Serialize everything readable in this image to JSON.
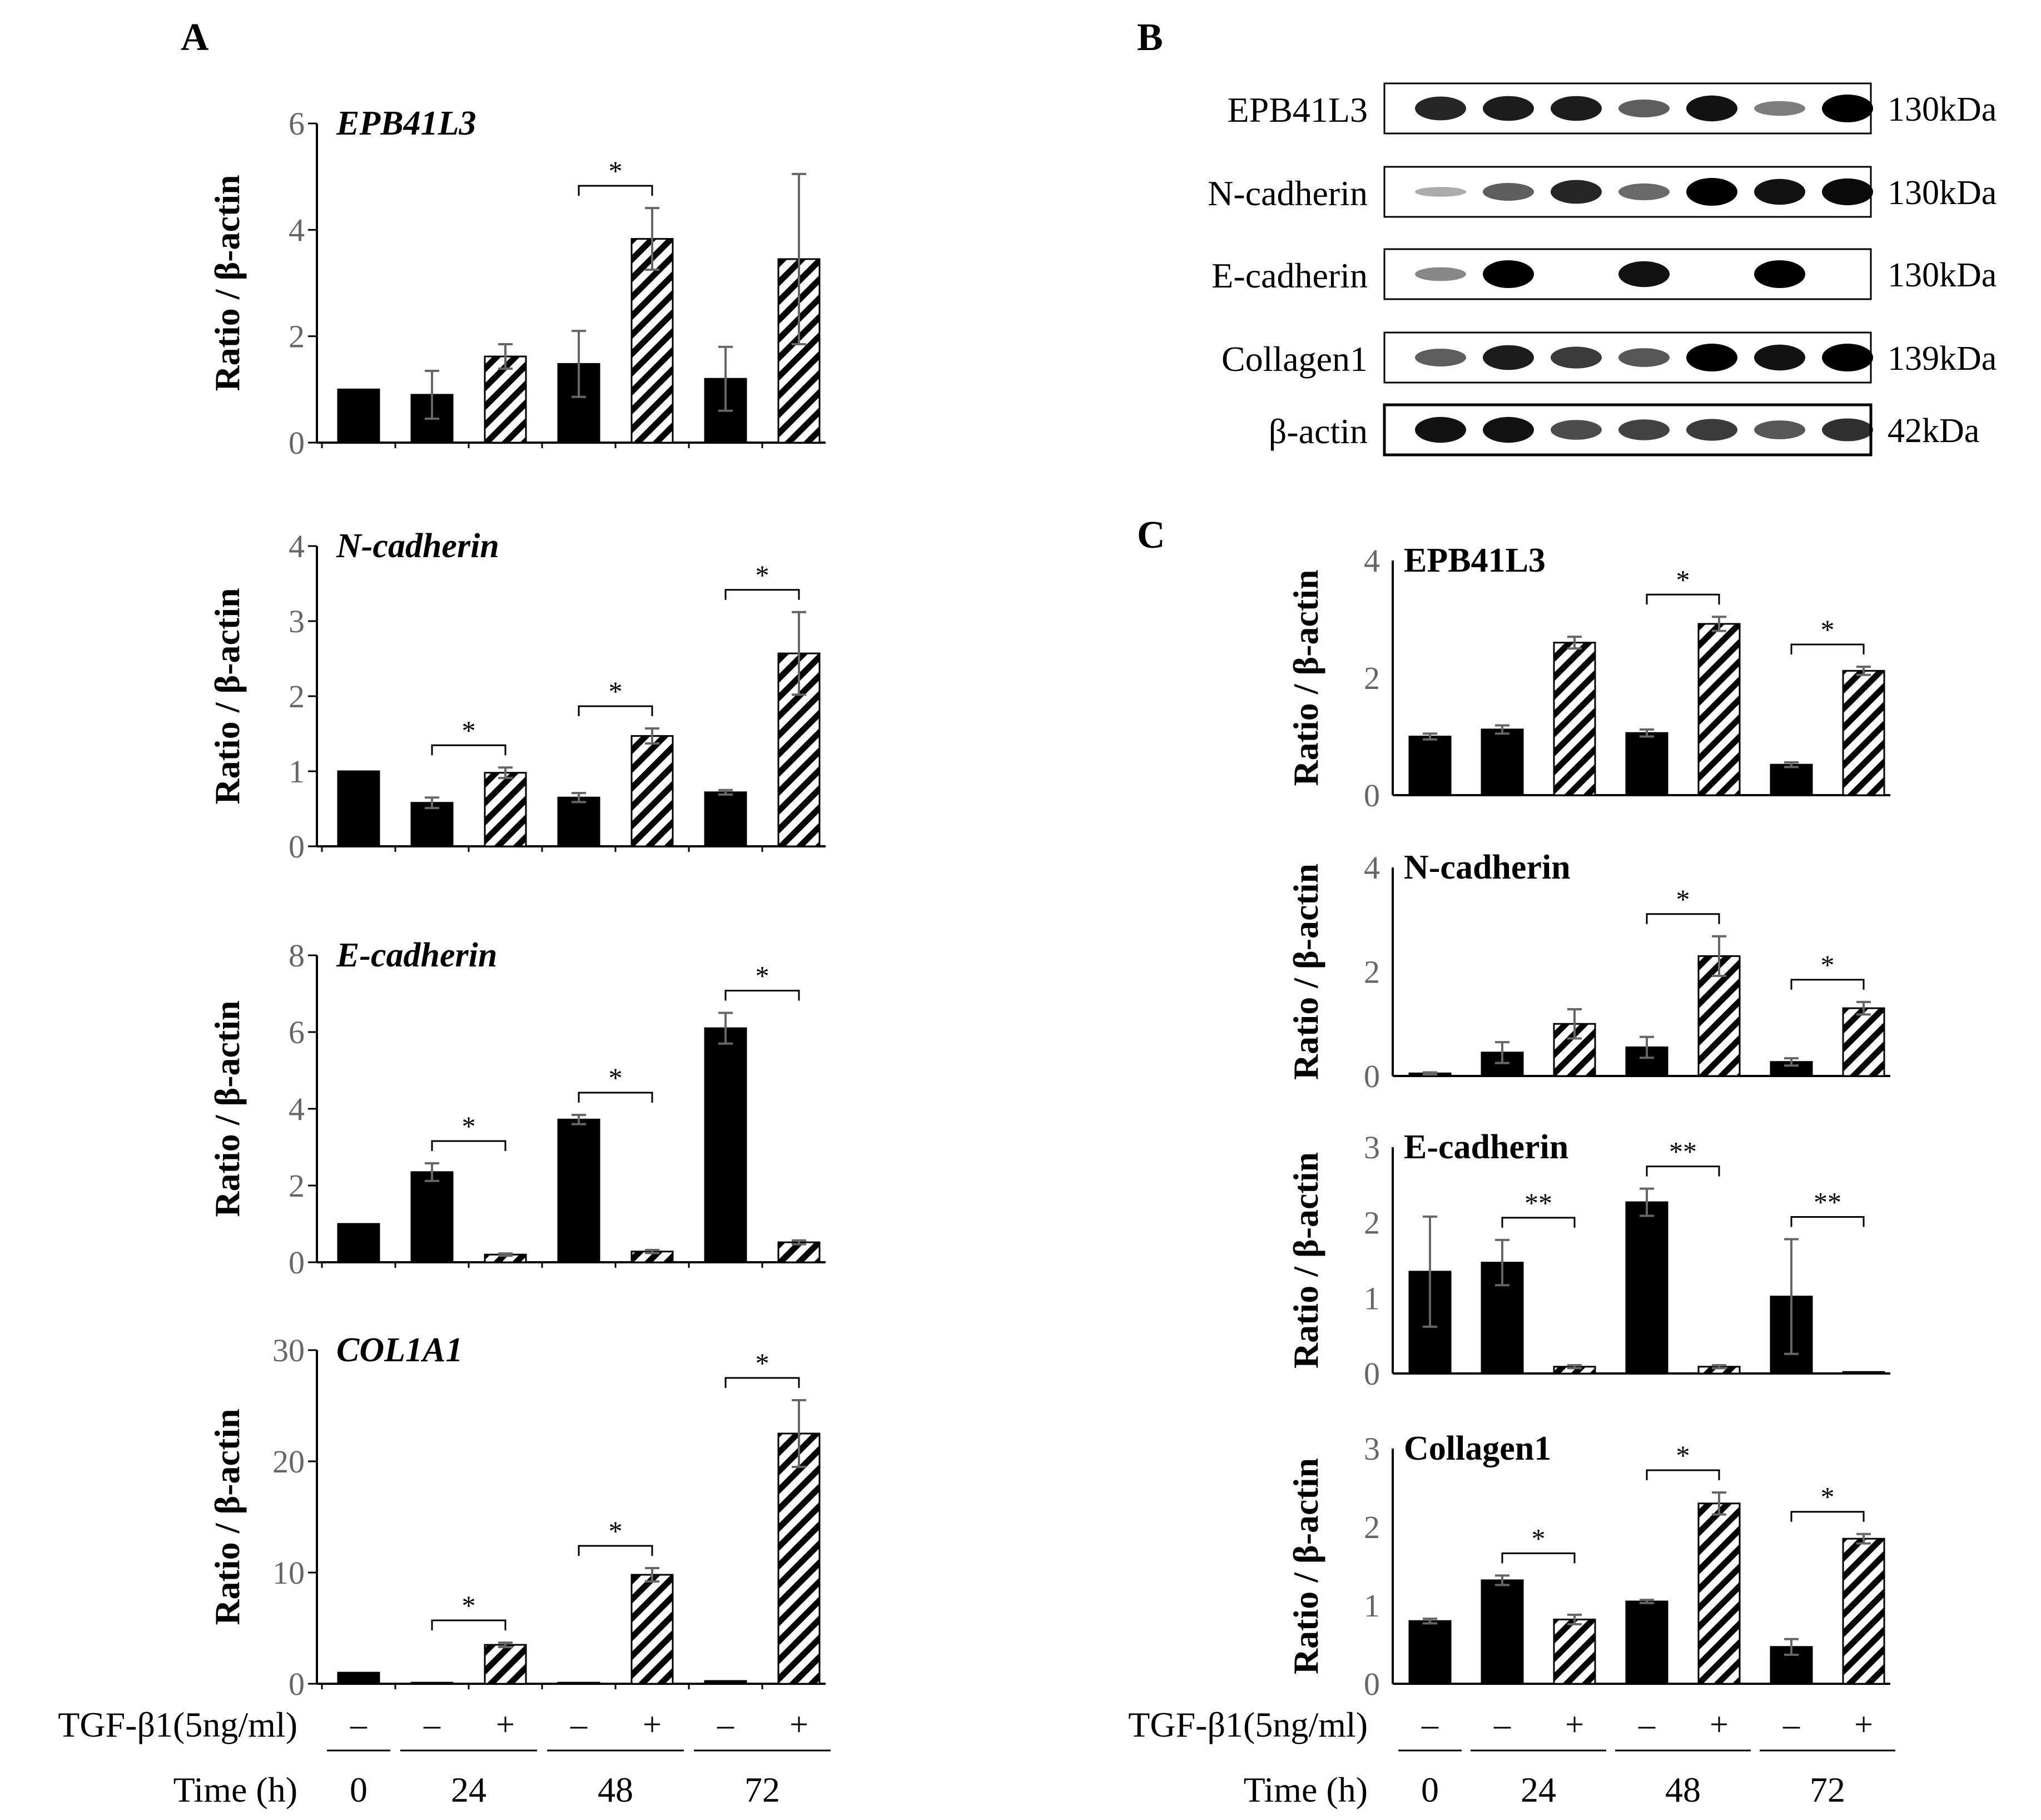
{
  "panel_labels": {
    "a": "A",
    "b": "B",
    "c": "C"
  },
  "axis_ylabel": "Ratio / β-actin",
  "treatment_label": "TGF-β1(5ng/ml)",
  "time_label": "Time (h)",
  "conditions": [
    "–",
    "–",
    "+",
    "–",
    "+",
    "–",
    "+"
  ],
  "time_points": [
    "0",
    "24",
    "48",
    "72"
  ],
  "colors": {
    "untreated": "#000000",
    "treated_hatch": "#000000",
    "error_bar": "#666666",
    "tick_text": "#666666"
  },
  "blot": {
    "rows": [
      {
        "protein": "EPB41L3",
        "size": "130kDa"
      },
      {
        "protein": "N-cadherin",
        "size": "130kDa"
      },
      {
        "protein": "E-cadherin",
        "size": "130kDa"
      },
      {
        "protein": "Collagen1",
        "size": "139kDa"
      },
      {
        "protein": "β-actin",
        "size": "42kDa"
      }
    ],
    "intensities": [
      [
        0.8,
        0.85,
        0.85,
        0.5,
        0.9,
        0.35,
        1.0
      ],
      [
        0.1,
        0.5,
        0.8,
        0.45,
        1.0,
        0.9,
        0.95
      ],
      [
        0.3,
        1.0,
        0.0,
        0.9,
        0.0,
        1.0,
        0.0
      ],
      [
        0.5,
        0.85,
        0.7,
        0.55,
        1.0,
        0.9,
        1.0
      ],
      [
        0.9,
        0.9,
        0.6,
        0.65,
        0.7,
        0.55,
        0.75
      ]
    ]
  },
  "chart_data": [
    {
      "type": "bar",
      "panel": "A",
      "title": "EPB41L3",
      "title_style": "italic",
      "ylabel": "Ratio / β-actin",
      "ylim": [
        0,
        6
      ],
      "yticks": [
        "0",
        "2",
        "4",
        "6"
      ],
      "categories": [
        "0 –",
        "24 –",
        "24 +",
        "48 –",
        "48 +",
        "72 –",
        "72 +"
      ],
      "series": [
        {
          "values": [
            1.0,
            0.9,
            1.62,
            1.48,
            3.83,
            1.2,
            3.45
          ]
        },
        {
          "errors": [
            0.0,
            0.45,
            0.23,
            0.62,
            0.58,
            0.6,
            1.6
          ]
        }
      ],
      "significance": [
        {
          "between": [
            3,
            4
          ],
          "label": "*"
        }
      ]
    },
    {
      "type": "bar",
      "panel": "A",
      "title": "N-cadherin",
      "title_style": "italic",
      "ylabel": "Ratio / β-actin",
      "ylim": [
        0,
        4
      ],
      "yticks": [
        "0",
        "1",
        "2",
        "3",
        "4"
      ],
      "categories": [
        "0 –",
        "24 –",
        "24 +",
        "48 –",
        "48 +",
        "72 –",
        "72 +"
      ],
      "series": [
        {
          "values": [
            1.0,
            0.58,
            0.98,
            0.65,
            1.47,
            0.72,
            2.57
          ]
        },
        {
          "errors": [
            0.0,
            0.07,
            0.07,
            0.06,
            0.1,
            0.03,
            0.55
          ]
        }
      ],
      "significance": [
        {
          "between": [
            1,
            2
          ],
          "label": "*"
        },
        {
          "between": [
            3,
            4
          ],
          "label": "*"
        },
        {
          "between": [
            5,
            6
          ],
          "label": "*"
        }
      ]
    },
    {
      "type": "bar",
      "panel": "A",
      "title": "E-cadherin",
      "title_style": "italic",
      "ylabel": "Ratio / β-actin",
      "ylim": [
        0,
        8
      ],
      "yticks": [
        "0",
        "2",
        "4",
        "6",
        "8"
      ],
      "categories": [
        "0 –",
        "24 –",
        "24 +",
        "48 –",
        "48 +",
        "72 –",
        "72 +"
      ],
      "series": [
        {
          "values": [
            1.0,
            2.35,
            0.2,
            3.72,
            0.28,
            6.1,
            0.52
          ]
        },
        {
          "errors": [
            0.0,
            0.23,
            0.03,
            0.12,
            0.04,
            0.4,
            0.05
          ]
        }
      ],
      "significance": [
        {
          "between": [
            1,
            2
          ],
          "label": "*"
        },
        {
          "between": [
            3,
            4
          ],
          "label": "*"
        },
        {
          "between": [
            5,
            6
          ],
          "label": "*"
        }
      ]
    },
    {
      "type": "bar",
      "panel": "A",
      "title": "COL1A1",
      "title_style": "italic",
      "ylabel": "Ratio / β-actin",
      "ylim": [
        0,
        30
      ],
      "yticks": [
        "0",
        "10",
        "20",
        "30"
      ],
      "categories": [
        "0 –",
        "24 –",
        "24 +",
        "48 –",
        "48 +",
        "72 –",
        "72 +"
      ],
      "series": [
        {
          "values": [
            1.0,
            0.1,
            3.5,
            0.1,
            9.8,
            0.25,
            22.5
          ]
        },
        {
          "errors": [
            0.0,
            0.0,
            0.2,
            0.0,
            0.6,
            0.0,
            3.0
          ]
        }
      ],
      "significance": [
        {
          "between": [
            1,
            2
          ],
          "label": "*"
        },
        {
          "between": [
            3,
            4
          ],
          "label": "*"
        },
        {
          "between": [
            5,
            6
          ],
          "label": "*"
        }
      ]
    },
    {
      "type": "bar",
      "panel": "C",
      "title": "EPB41L3",
      "title_style": "bold",
      "ylabel": "Ratio / β-actin",
      "ylim": [
        0,
        4
      ],
      "yticks": [
        "0",
        "2",
        "4"
      ],
      "categories": [
        "0 –",
        "24 –",
        "24 +",
        "48 –",
        "48 +",
        "72 –",
        "72 +"
      ],
      "series": [
        {
          "values": [
            1.0,
            1.12,
            2.6,
            1.06,
            2.92,
            0.52,
            2.12
          ]
        },
        {
          "errors": [
            0.05,
            0.07,
            0.1,
            0.06,
            0.12,
            0.04,
            0.07
          ]
        }
      ],
      "significance": [
        {
          "between": [
            3,
            4
          ],
          "label": "*"
        },
        {
          "between": [
            5,
            6
          ],
          "label": "*"
        }
      ]
    },
    {
      "type": "bar",
      "panel": "C",
      "title": "N-cadherin",
      "title_style": "bold",
      "ylabel": "Ratio / β-actin",
      "ylim": [
        0,
        4
      ],
      "yticks": [
        "0",
        "2",
        "4"
      ],
      "categories": [
        "0 –",
        "24 –",
        "24 +",
        "48 –",
        "48 +",
        "72 –",
        "72 +"
      ],
      "series": [
        {
          "values": [
            0.05,
            0.45,
            1.0,
            0.55,
            2.3,
            0.27,
            1.3
          ]
        },
        {
          "errors": [
            0.02,
            0.2,
            0.28,
            0.2,
            0.38,
            0.07,
            0.12
          ]
        }
      ],
      "significance": [
        {
          "between": [
            3,
            4
          ],
          "label": "*"
        },
        {
          "between": [
            5,
            6
          ],
          "label": "*"
        }
      ]
    },
    {
      "type": "bar",
      "panel": "C",
      "title": "E-cadherin",
      "title_style": "bold",
      "ylabel": "Ratio / β-actin",
      "ylim": [
        0,
        3
      ],
      "yticks": [
        "0",
        "1",
        "2",
        "3"
      ],
      "categories": [
        "0 –",
        "24 –",
        "24 +",
        "48 –",
        "48 +",
        "72 –",
        "72 +"
      ],
      "series": [
        {
          "values": [
            1.35,
            1.47,
            0.09,
            2.27,
            0.09,
            1.02,
            0.02
          ]
        },
        {
          "errors": [
            0.73,
            0.3,
            0.02,
            0.18,
            0.02,
            0.76,
            0.0
          ]
        }
      ],
      "significance": [
        {
          "between": [
            1,
            2
          ],
          "label": "**"
        },
        {
          "between": [
            3,
            4
          ],
          "label": "**"
        },
        {
          "between": [
            5,
            6
          ],
          "label": "**"
        }
      ]
    },
    {
      "type": "bar",
      "panel": "C",
      "title": "Collagen1",
      "title_style": "bold",
      "ylabel": "Ratio / β-actin",
      "ylim": [
        0,
        3
      ],
      "yticks": [
        "0",
        "1",
        "2",
        "3"
      ],
      "categories": [
        "0 –",
        "24 –",
        "24 +",
        "48 –",
        "48 +",
        "72 –",
        "72 +"
      ],
      "series": [
        {
          "values": [
            0.8,
            1.32,
            0.82,
            1.05,
            2.3,
            0.47,
            1.85
          ]
        },
        {
          "errors": [
            0.03,
            0.06,
            0.06,
            0.02,
            0.14,
            0.1,
            0.06
          ]
        }
      ],
      "significance": [
        {
          "between": [
            1,
            2
          ],
          "label": "*"
        },
        {
          "between": [
            3,
            4
          ],
          "label": "*"
        },
        {
          "between": [
            5,
            6
          ],
          "label": "*"
        }
      ]
    }
  ]
}
